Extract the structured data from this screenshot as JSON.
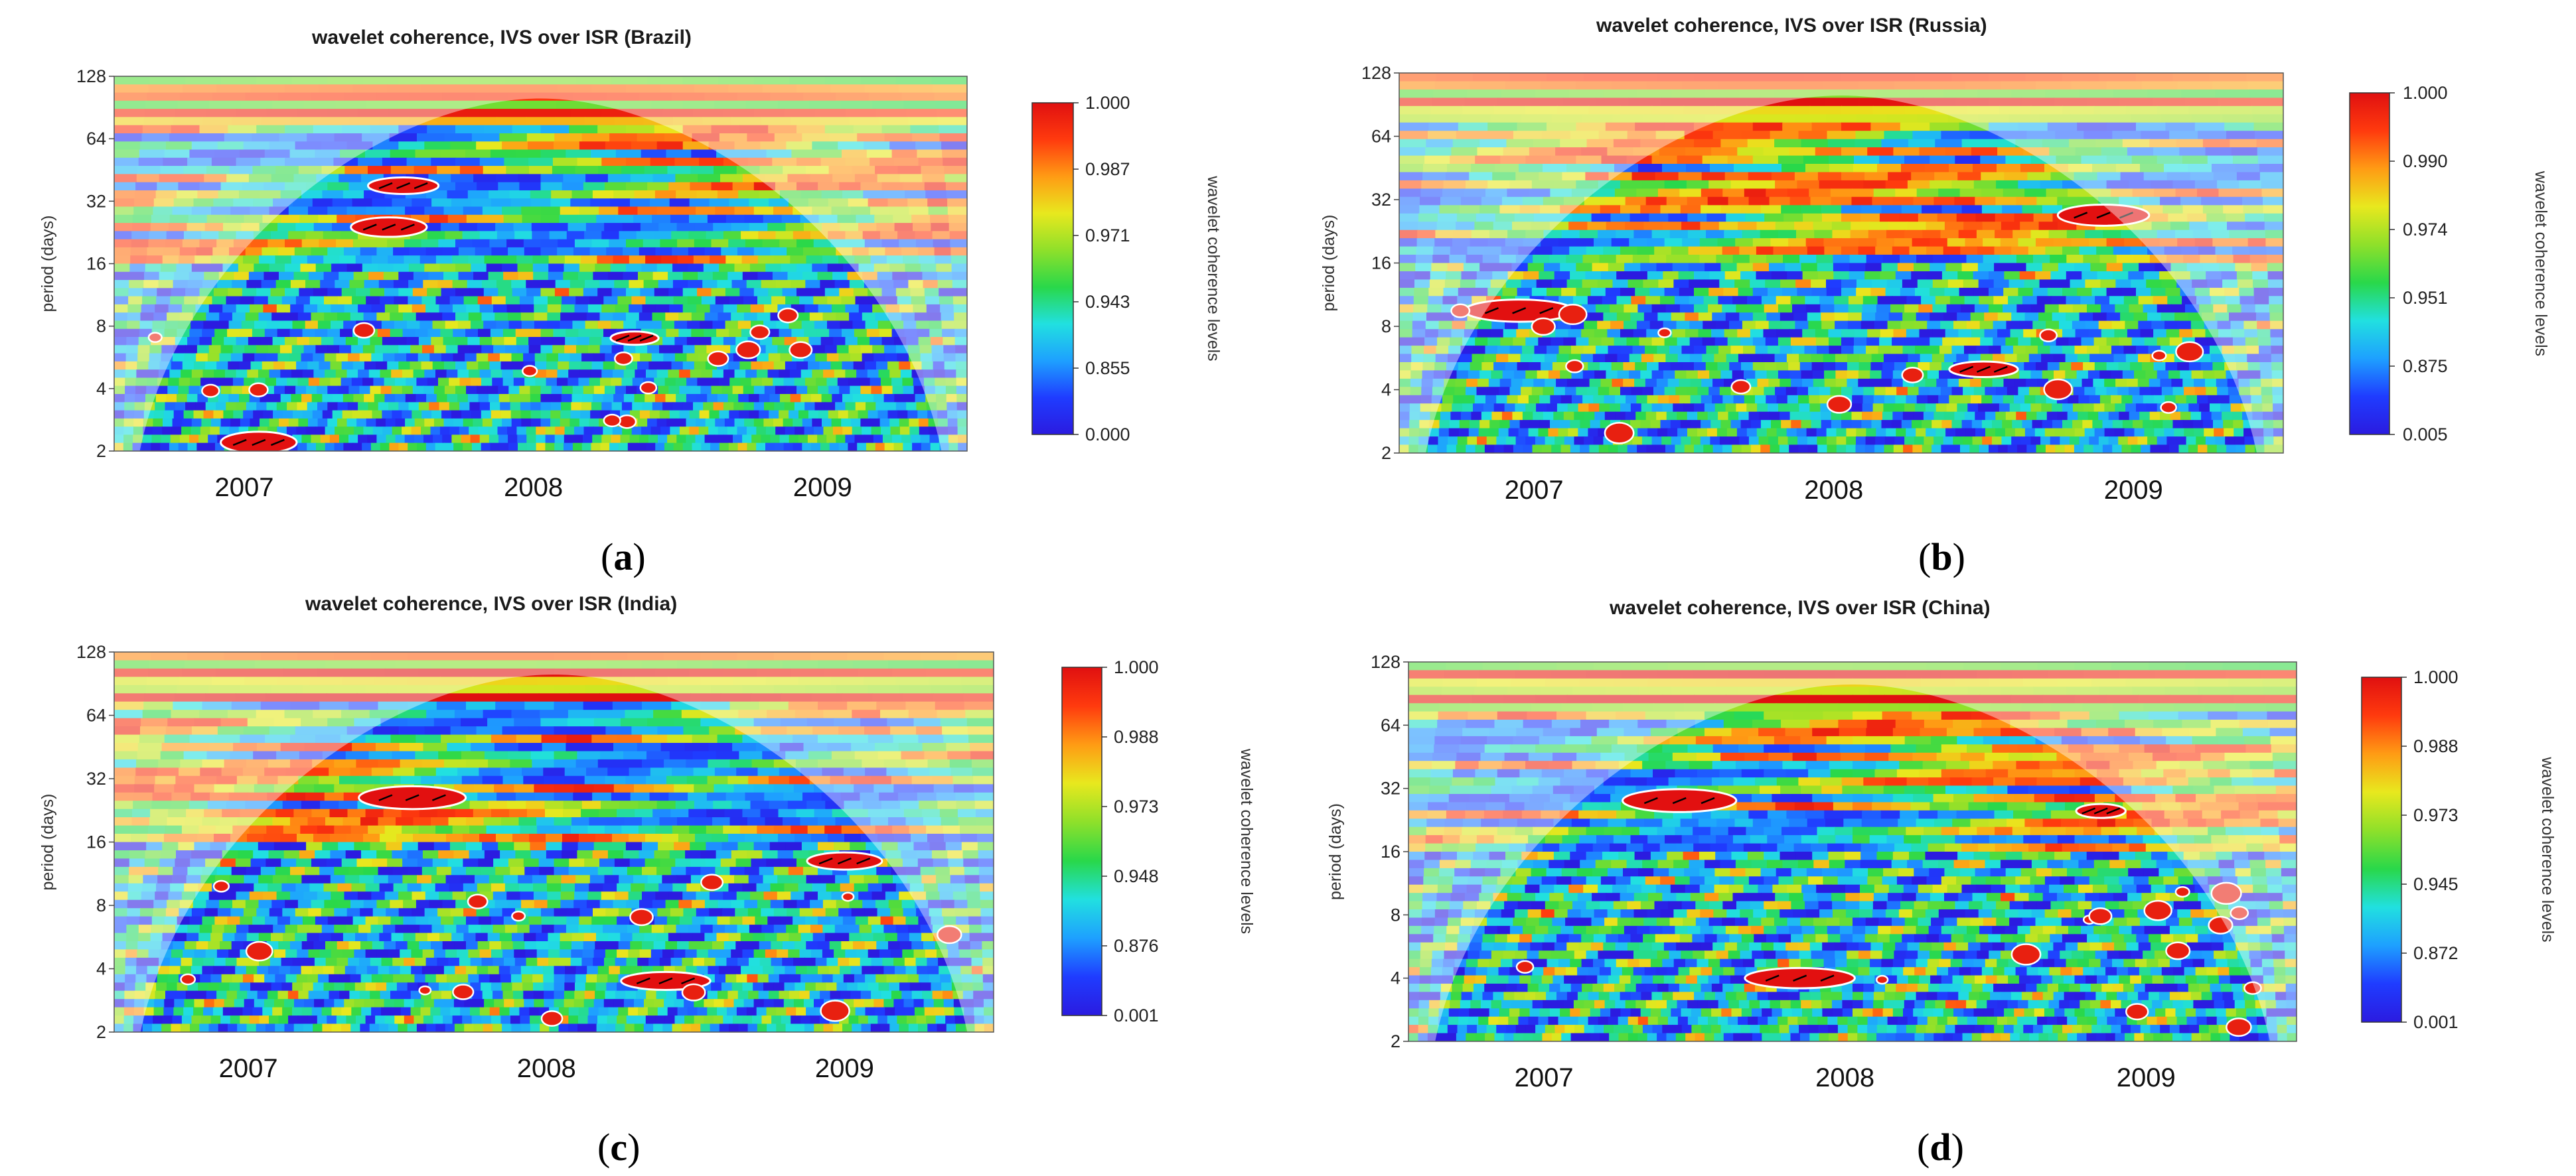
{
  "figure": {
    "panel_labels": [
      {
        "open": "(",
        "letter": "a",
        "close": ")"
      },
      {
        "open": "(",
        "letter": "b",
        "close": ")"
      },
      {
        "open": "(",
        "letter": "c",
        "close": ")"
      },
      {
        "open": "(",
        "letter": "d",
        "close": ")"
      }
    ]
  },
  "colors": {
    "coherence_scale": [
      "#2b1be0",
      "#1f3cff",
      "#1ea0ff",
      "#21e0e0",
      "#29d84a",
      "#8fe02a",
      "#e8e81e",
      "#ff9b14",
      "#ff3a0e",
      "#e01010"
    ],
    "contour": "#ffffff",
    "arrow": "#000000",
    "cone_shade": "#ffffff"
  },
  "chart_data": [
    {
      "type": "heatmap",
      "title": "wavelet coherence, IVS over ISR (Brazil)",
      "xlabel": "",
      "ylabel": "period (days)",
      "colorbar_label": "wavelet coherence levels",
      "colorbar_ticks": [
        "1.000",
        "0.987",
        "0.971",
        "0.943",
        "0.855",
        "0.000"
      ],
      "x_ticks": [
        "2007",
        "2008",
        "2009"
      ],
      "y_ticks": [
        "128",
        "64",
        "32",
        "16",
        "8",
        "4",
        "2"
      ],
      "ylim": [
        2,
        128
      ],
      "xlim": [
        2006.55,
        2009.5
      ],
      "cone_of_influence": true,
      "high_coherence_regions": [
        {
          "year": 2007.5,
          "period": 24
        },
        {
          "year": 2007.55,
          "period": 38
        },
        {
          "year": 2008.35,
          "period": 7
        },
        {
          "year": 2007.05,
          "period": 2.2
        }
      ]
    },
    {
      "type": "heatmap",
      "title": "wavelet coherence, IVS over ISR (Russia)",
      "xlabel": "",
      "ylabel": "period (days)",
      "colorbar_label": "wavelet coherence levels",
      "colorbar_ticks": [
        "1.000",
        "0.990",
        "0.974",
        "0.951",
        "0.875",
        "0.005"
      ],
      "x_ticks": [
        "2007",
        "2008",
        "2009"
      ],
      "y_ticks": [
        "128",
        "64",
        "32",
        "16",
        "8",
        "4",
        "2"
      ],
      "ylim": [
        2,
        128
      ],
      "xlim": [
        2006.55,
        2009.5
      ],
      "cone_of_influence": true,
      "high_coherence_regions": [
        {
          "year": 2008.9,
          "period": 27
        },
        {
          "year": 2006.95,
          "period": 9.5
        },
        {
          "year": 2008.5,
          "period": 5
        }
      ]
    },
    {
      "type": "heatmap",
      "title": "wavelet coherence, IVS over ISR (India)",
      "xlabel": "",
      "ylabel": "period (days)",
      "colorbar_label": "wavelet coherence levels",
      "colorbar_ticks": [
        "1.000",
        "0.988",
        "0.973",
        "0.948",
        "0.876",
        "0.001"
      ],
      "x_ticks": [
        "2007",
        "2008",
        "2009"
      ],
      "y_ticks": [
        "128",
        "64",
        "32",
        "16",
        "8",
        "4",
        "2"
      ],
      "ylim": [
        2,
        128
      ],
      "xlim": [
        2006.55,
        2009.5
      ],
      "cone_of_influence": true,
      "high_coherence_regions": [
        {
          "year": 2007.55,
          "period": 26
        },
        {
          "year": 2009.0,
          "period": 13
        },
        {
          "year": 2008.4,
          "period": 3.5
        }
      ]
    },
    {
      "type": "heatmap",
      "title": "wavelet coherence, IVS over ISR (China)",
      "xlabel": "",
      "ylabel": "period (days)",
      "colorbar_label": "wavelet coherence levels",
      "colorbar_ticks": [
        "1.000",
        "0.988",
        "0.973",
        "0.945",
        "0.872",
        "0.001"
      ],
      "x_ticks": [
        "2007",
        "2008",
        "2009"
      ],
      "y_ticks": [
        "128",
        "64",
        "32",
        "16",
        "8",
        "4",
        "2"
      ],
      "ylim": [
        2,
        128
      ],
      "xlim": [
        2006.55,
        2009.5
      ],
      "cone_of_influence": true,
      "high_coherence_regions": [
        {
          "year": 2008.85,
          "period": 25
        },
        {
          "year": 2007.45,
          "period": 28
        },
        {
          "year": 2007.85,
          "period": 4
        }
      ]
    }
  ]
}
